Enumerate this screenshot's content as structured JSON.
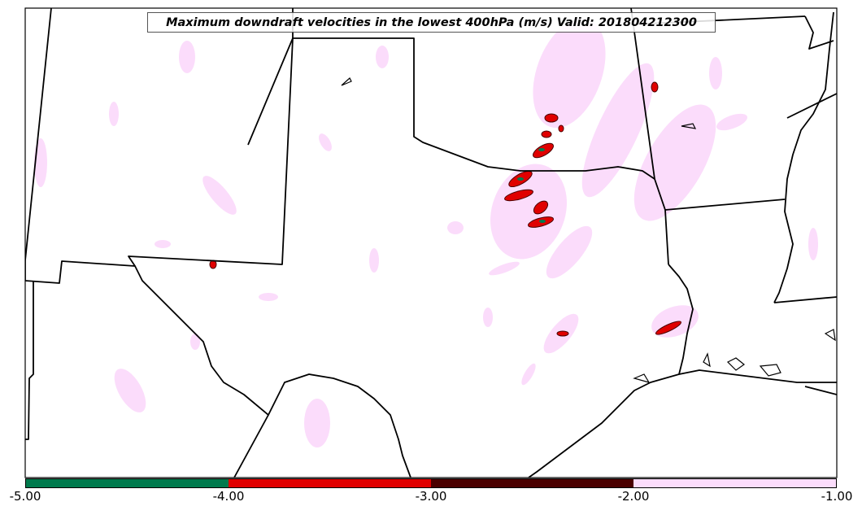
{
  "title": "Maximum downdraft velocities in the lowest 400hPa (m/s) Valid: 201804212300",
  "colorbar": {
    "ticks": [
      "-5.00",
      "-4.00",
      "-3.00",
      "-2.00",
      "-1.00"
    ],
    "segments": [
      {
        "range": [
          -5,
          -4
        ],
        "color": "#007a4d"
      },
      {
        "range": [
          -4,
          -3
        ],
        "color": "#e00000"
      },
      {
        "range": [
          -3,
          -2
        ],
        "color": "#4a0000"
      },
      {
        "range": [
          -2,
          -1
        ],
        "color": "#fbdcfb"
      }
    ]
  },
  "colors": {
    "background": "#ffffff",
    "boundary": "#000000",
    "weak": "#fbdcfb",
    "moderate": "#4a0000",
    "strong": "#e00000",
    "extreme": "#007a4d"
  }
}
